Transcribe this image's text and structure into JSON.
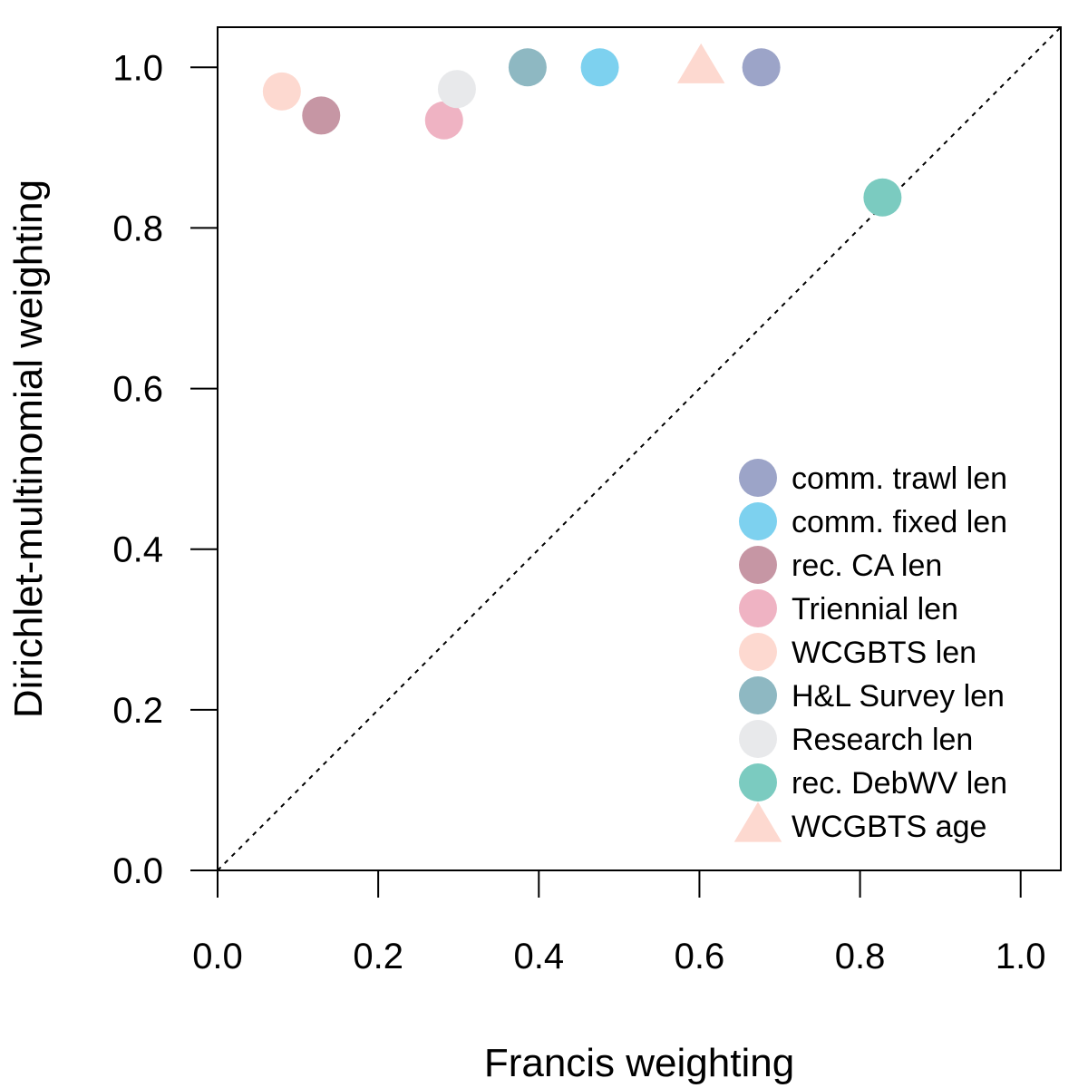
{
  "chart_data": {
    "type": "scatter",
    "title": "",
    "xlabel": "Francis weighting",
    "ylabel": "Dirichlet-multinomial weighting",
    "xlim": [
      0.0,
      1.05
    ],
    "ylim": [
      0.0,
      1.05
    ],
    "xticks": [
      "0.0",
      "0.2",
      "0.4",
      "0.6",
      "0.8",
      "1.0"
    ],
    "yticks": [
      "0.0",
      "0.2",
      "0.4",
      "0.6",
      "0.8",
      "1.0"
    ],
    "grid": false,
    "reference_line": {
      "type": "1:1 dotted",
      "from": [
        0,
        0
      ],
      "to": [
        1.05,
        1.05
      ]
    },
    "legend_position": "bottom-right",
    "series": [
      {
        "name": "comm. trawl len",
        "marker": "circle",
        "color": "#9CA4C8",
        "x": 0.677,
        "y": 1.0
      },
      {
        "name": "comm. fixed len",
        "marker": "circle",
        "color": "#7DD1EF",
        "x": 0.476,
        "y": 1.0
      },
      {
        "name": "rec. CA len",
        "marker": "circle",
        "color": "#C696A4",
        "x": 0.129,
        "y": 0.94
      },
      {
        "name": "Triennial len",
        "marker": "circle",
        "color": "#EFB3C3",
        "x": 0.282,
        "y": 0.934
      },
      {
        "name": "WCGBTS len",
        "marker": "circle",
        "color": "#FDD9D0",
        "x": 0.08,
        "y": 0.97
      },
      {
        "name": "H&L Survey len",
        "marker": "circle",
        "color": "#8EB8C2",
        "x": 0.386,
        "y": 1.0
      },
      {
        "name": "Research len",
        "marker": "circle",
        "color": "#E8E9EB",
        "x": 0.298,
        "y": 0.973
      },
      {
        "name": "rec. DebWV len",
        "marker": "circle",
        "color": "#7BCBC0",
        "x": 0.828,
        "y": 0.838
      },
      {
        "name": "WCGBTS age",
        "marker": "triangle",
        "color": "#FDD9D0",
        "x": 0.602,
        "y": 1.0
      }
    ]
  }
}
